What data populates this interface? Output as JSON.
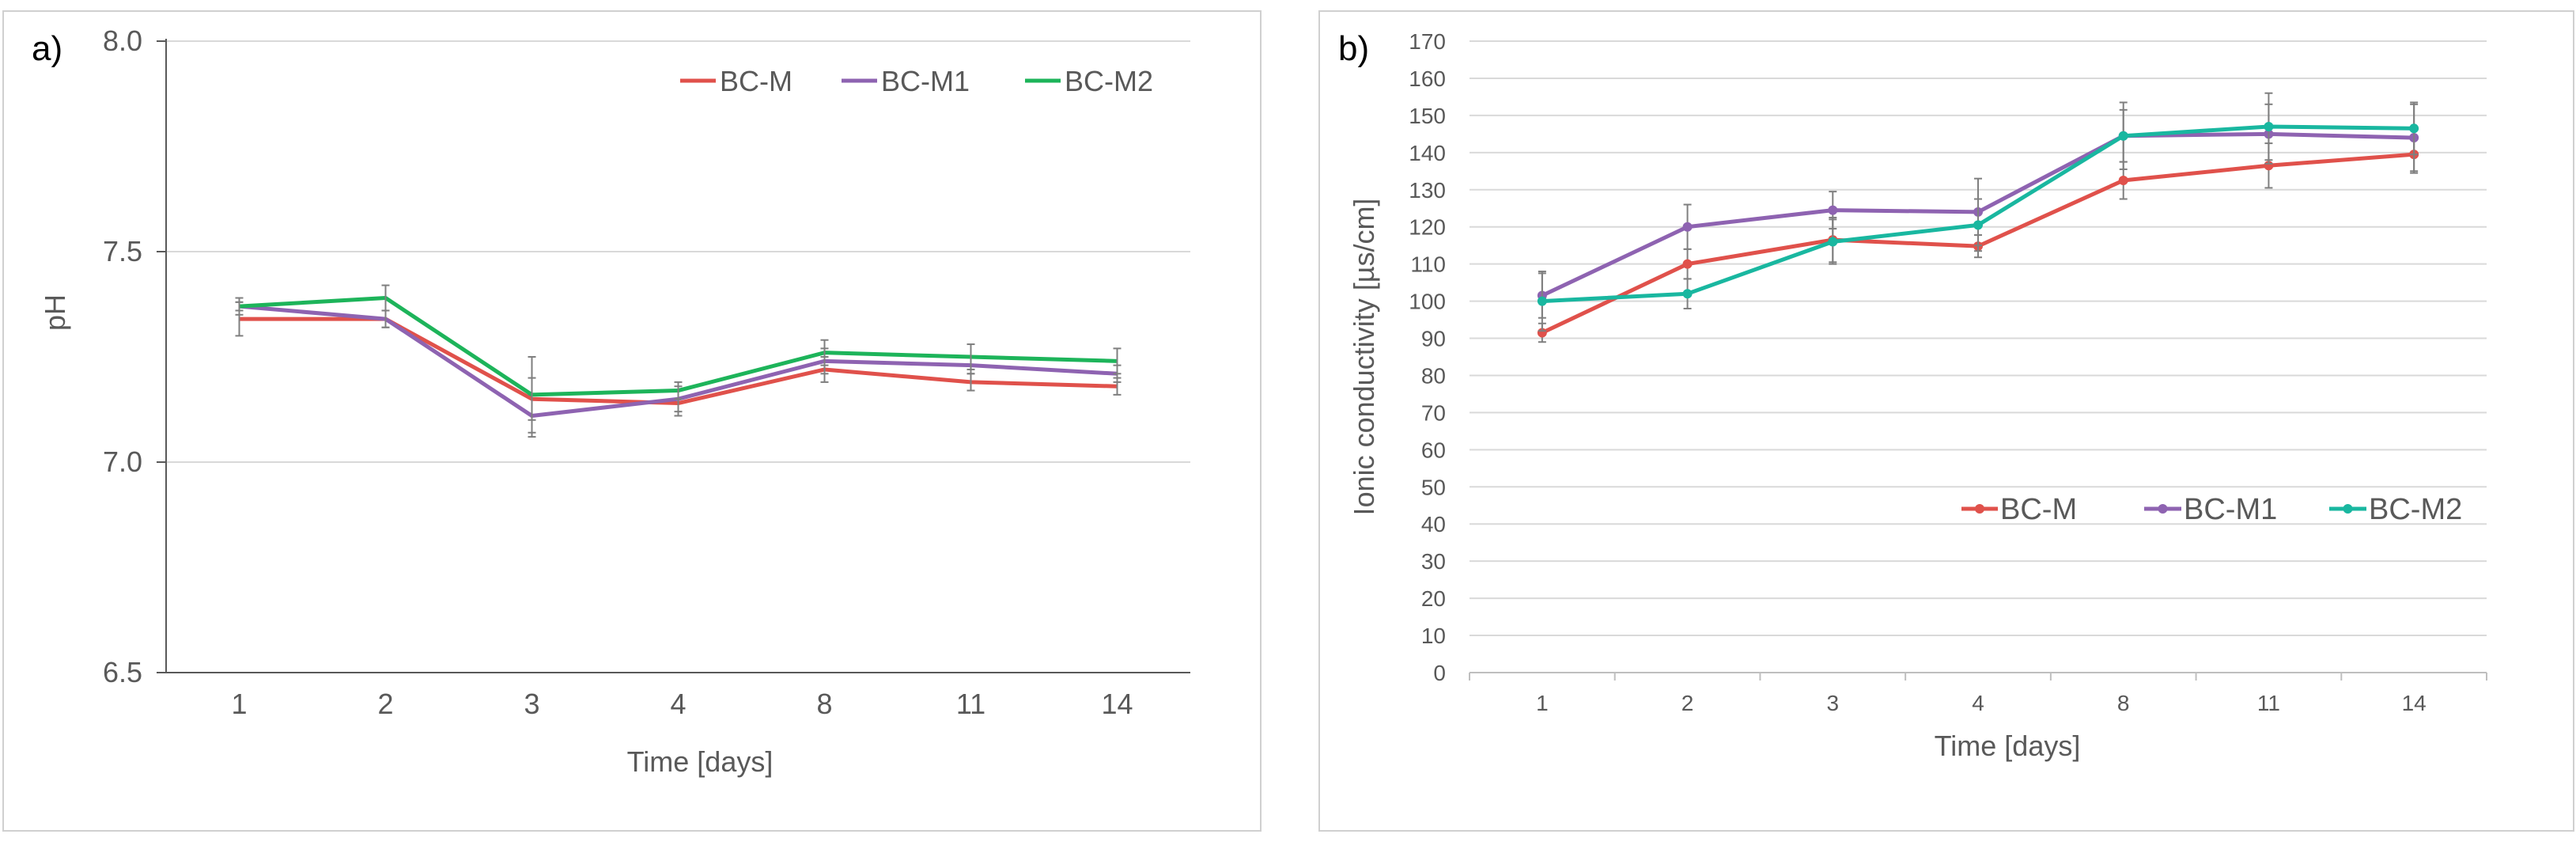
{
  "chart_data": [
    {
      "panel_label": "a)",
      "type": "line",
      "categories": [
        "1",
        "2",
        "3",
        "4",
        "8",
        "11",
        "14"
      ],
      "xlabel": "Time [days]",
      "ylabel": "pH",
      "ylim": [
        6.5,
        8.0
      ],
      "yticks": [
        "6.5",
        "7.0",
        "7.5",
        "8.0"
      ],
      "grid": true,
      "legend": "top-right",
      "series": [
        {
          "name": "BC-M",
          "color": "#e0514b",
          "values": [
            7.34,
            7.34,
            7.15,
            7.14,
            7.22,
            7.19,
            7.18
          ],
          "errors": [
            0.04,
            0.02,
            0.05,
            0.03,
            0.03,
            0.02,
            0.02
          ]
        },
        {
          "name": "BC-M1",
          "color": "#8e63b1",
          "values": [
            7.37,
            7.34,
            7.11,
            7.15,
            7.24,
            7.23,
            7.21
          ],
          "errors": [
            0.02,
            0.02,
            0.05,
            0.03,
            0.03,
            0.02,
            0.02
          ]
        },
        {
          "name": "BC-M2",
          "color": "#1db45a",
          "values": [
            7.37,
            7.39,
            7.16,
            7.17,
            7.26,
            7.25,
            7.24
          ],
          "errors": [
            0.01,
            0.03,
            0.09,
            0.02,
            0.03,
            0.03,
            0.03
          ]
        }
      ]
    },
    {
      "panel_label": "b)",
      "type": "line",
      "categories": [
        "1",
        "2",
        "3",
        "4",
        "8",
        "11",
        "14"
      ],
      "xlabel": "Time [days]",
      "ylabel": "Ionic conductivity [µs/cm]",
      "ylim": [
        0,
        170
      ],
      "yticks": [
        "0",
        "10",
        "20",
        "30",
        "40",
        "50",
        "60",
        "70",
        "80",
        "90",
        "100",
        "110",
        "120",
        "130",
        "140",
        "150",
        "160",
        "170"
      ],
      "grid": true,
      "legend": "lower-right",
      "markers": true,
      "series": [
        {
          "name": "BC-M",
          "color": "#e0514b",
          "values": [
            91.5,
            110,
            116.5,
            114.8,
            132.5,
            136.5,
            139.5
          ],
          "errors": [
            2.5,
            4,
            6,
            3,
            5,
            6,
            5
          ]
        },
        {
          "name": "BC-M1",
          "color": "#8e63b1",
          "values": [
            101.5,
            120,
            124.5,
            124,
            144.5,
            145,
            144
          ],
          "errors": [
            6,
            6,
            5,
            9,
            7,
            8,
            9
          ]
        },
        {
          "name": "BC-M2",
          "color": "#19b7a0",
          "values": [
            100,
            102,
            116,
            120.5,
            144.5,
            147,
            146.5
          ],
          "errors": [
            8,
            4,
            6,
            7,
            9,
            9,
            7
          ]
        }
      ]
    }
  ]
}
